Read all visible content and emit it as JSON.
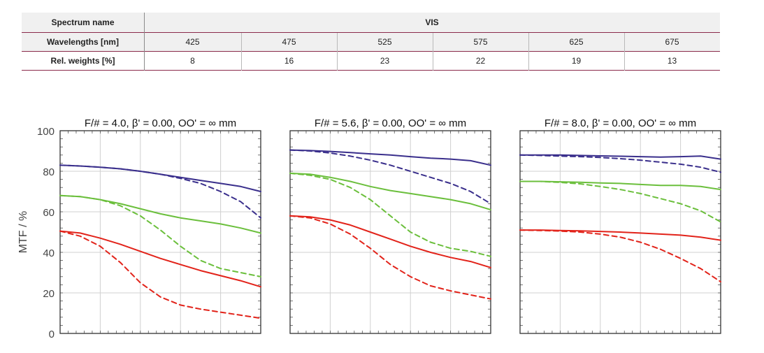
{
  "table": {
    "rows": [
      {
        "name": "Spectrum name",
        "cells": [
          "VIS"
        ]
      },
      {
        "name": "Wavelengths [nm]",
        "cells": [
          "425",
          "475",
          "525",
          "575",
          "625",
          "675"
        ]
      },
      {
        "name": "Rel. weights [%]",
        "cells": [
          "8",
          "16",
          "23",
          "22",
          "19",
          "13"
        ]
      }
    ]
  },
  "chart_data": [
    {
      "type": "line",
      "title": "F/# = 4.0, β' = 0.00, OO' = ∞ mm",
      "ylabel": "MTF / %",
      "ylim": [
        0,
        100
      ],
      "yticks": [
        "0",
        "20",
        "40",
        "60",
        "80",
        "100"
      ],
      "grid": true,
      "colors": {
        "blue": "#3a2f8c",
        "green": "#6bbf3c",
        "red": "#e2231a"
      },
      "series": [
        {
          "color": "blue",
          "dash": false,
          "x": [
            0,
            0.1,
            0.2,
            0.3,
            0.4,
            0.5,
            0.6,
            0.7,
            0.8,
            0.9,
            1.0
          ],
          "values": [
            83,
            82.6,
            82,
            81.2,
            80,
            78.5,
            77,
            75.5,
            74,
            72.5,
            70
          ]
        },
        {
          "color": "blue",
          "dash": true,
          "x": [
            0,
            0.1,
            0.2,
            0.3,
            0.4,
            0.5,
            0.6,
            0.7,
            0.8,
            0.9,
            1.0
          ],
          "values": [
            83,
            82.6,
            82,
            81.2,
            80,
            78.5,
            76.5,
            74,
            70,
            65,
            57
          ]
        },
        {
          "color": "green",
          "dash": false,
          "x": [
            0,
            0.1,
            0.2,
            0.3,
            0.4,
            0.5,
            0.6,
            0.7,
            0.8,
            0.9,
            1.0
          ],
          "values": [
            68,
            67.5,
            66,
            64,
            61.5,
            59,
            57,
            55.5,
            54,
            52,
            49.5
          ]
        },
        {
          "color": "green",
          "dash": true,
          "x": [
            0,
            0.1,
            0.2,
            0.3,
            0.4,
            0.5,
            0.6,
            0.7,
            0.8,
            0.9,
            1.0
          ],
          "values": [
            68,
            67.5,
            66,
            63,
            58,
            51,
            43,
            36,
            32,
            30,
            28
          ]
        },
        {
          "color": "red",
          "dash": false,
          "x": [
            0,
            0.1,
            0.2,
            0.3,
            0.4,
            0.5,
            0.6,
            0.7,
            0.8,
            0.9,
            1.0
          ],
          "values": [
            50.5,
            49.5,
            47,
            44,
            40.5,
            37,
            34,
            31,
            28.5,
            26,
            23
          ]
        },
        {
          "color": "red",
          "dash": true,
          "x": [
            0,
            0.1,
            0.2,
            0.3,
            0.4,
            0.5,
            0.6,
            0.7,
            0.8,
            0.9,
            1.0
          ],
          "values": [
            50.5,
            48,
            43,
            35,
            25,
            18,
            14,
            12,
            10.5,
            9,
            7.5
          ]
        }
      ]
    },
    {
      "type": "line",
      "title": "F/# = 5.6, β' = 0.00, OO' = ∞ mm",
      "ylim": [
        0,
        100
      ],
      "grid": true,
      "series": [
        {
          "color": "blue",
          "dash": false,
          "x": [
            0,
            0.1,
            0.2,
            0.3,
            0.4,
            0.5,
            0.6,
            0.7,
            0.8,
            0.9,
            1.0
          ],
          "values": [
            90.5,
            90.2,
            89.8,
            89.2,
            88.6,
            88,
            87.2,
            86.5,
            86,
            85.2,
            83
          ]
        },
        {
          "color": "blue",
          "dash": true,
          "x": [
            0,
            0.1,
            0.2,
            0.3,
            0.4,
            0.5,
            0.6,
            0.7,
            0.8,
            0.9,
            1.0
          ],
          "values": [
            90.5,
            90,
            89,
            87.5,
            85.5,
            83,
            80,
            77,
            74,
            70,
            64
          ]
        },
        {
          "color": "green",
          "dash": false,
          "x": [
            0,
            0.1,
            0.2,
            0.3,
            0.4,
            0.5,
            0.6,
            0.7,
            0.8,
            0.9,
            1.0
          ],
          "values": [
            79,
            78.5,
            77,
            75,
            72.5,
            70.5,
            69,
            67.5,
            66,
            64,
            61
          ]
        },
        {
          "color": "green",
          "dash": true,
          "x": [
            0,
            0.1,
            0.2,
            0.3,
            0.4,
            0.5,
            0.6,
            0.7,
            0.8,
            0.9,
            1.0
          ],
          "values": [
            79,
            78,
            76,
            72,
            66,
            58,
            50,
            45,
            42,
            40.5,
            38
          ]
        },
        {
          "color": "red",
          "dash": false,
          "x": [
            0,
            0.1,
            0.2,
            0.3,
            0.4,
            0.5,
            0.6,
            0.7,
            0.8,
            0.9,
            1.0
          ],
          "values": [
            58,
            57.5,
            56,
            53.5,
            50,
            46.5,
            43,
            40,
            37.5,
            35.5,
            32.5
          ]
        },
        {
          "color": "red",
          "dash": true,
          "x": [
            0,
            0.1,
            0.2,
            0.3,
            0.4,
            0.5,
            0.6,
            0.7,
            0.8,
            0.9,
            1.0
          ],
          "values": [
            58,
            57,
            54,
            49,
            42,
            34,
            28,
            23.5,
            21,
            19,
            17
          ]
        }
      ]
    },
    {
      "type": "line",
      "title": "F/# = 8.0, β' = 0.00, OO' = ∞ mm",
      "ylim": [
        0,
        100
      ],
      "grid": true,
      "series": [
        {
          "color": "blue",
          "dash": false,
          "x": [
            0,
            0.1,
            0.2,
            0.3,
            0.4,
            0.5,
            0.6,
            0.7,
            0.8,
            0.9,
            1.0
          ],
          "values": [
            88,
            88,
            88,
            87.8,
            87.6,
            87.4,
            87.2,
            87,
            87.2,
            87.5,
            86
          ]
        },
        {
          "color": "blue",
          "dash": true,
          "x": [
            0,
            0.1,
            0.2,
            0.3,
            0.4,
            0.5,
            0.6,
            0.7,
            0.8,
            0.9,
            1.0
          ],
          "values": [
            88,
            87.8,
            87.5,
            87.2,
            86.8,
            86.2,
            85.5,
            84.5,
            83.5,
            82,
            79.5
          ]
        },
        {
          "color": "green",
          "dash": false,
          "x": [
            0,
            0.1,
            0.2,
            0.3,
            0.4,
            0.5,
            0.6,
            0.7,
            0.8,
            0.9,
            1.0
          ],
          "values": [
            75,
            75,
            74.8,
            74.6,
            74.2,
            74,
            73.5,
            73,
            73,
            72.5,
            71
          ]
        },
        {
          "color": "green",
          "dash": true,
          "x": [
            0,
            0.1,
            0.2,
            0.3,
            0.4,
            0.5,
            0.6,
            0.7,
            0.8,
            0.9,
            1.0
          ],
          "values": [
            75,
            75,
            74.5,
            73.8,
            72.5,
            71,
            69,
            66.5,
            64,
            60.5,
            55
          ]
        },
        {
          "color": "red",
          "dash": false,
          "x": [
            0,
            0.1,
            0.2,
            0.3,
            0.4,
            0.5,
            0.6,
            0.7,
            0.8,
            0.9,
            1.0
          ],
          "values": [
            51,
            51,
            50.8,
            50.6,
            50.3,
            50,
            49.5,
            49,
            48.5,
            47.5,
            46
          ]
        },
        {
          "color": "red",
          "dash": true,
          "x": [
            0,
            0.1,
            0.2,
            0.3,
            0.4,
            0.5,
            0.6,
            0.7,
            0.8,
            0.9,
            1.0
          ],
          "values": [
            51,
            50.8,
            50.5,
            50,
            49,
            47.5,
            45,
            41.5,
            37,
            32,
            25.5
          ]
        }
      ]
    }
  ]
}
